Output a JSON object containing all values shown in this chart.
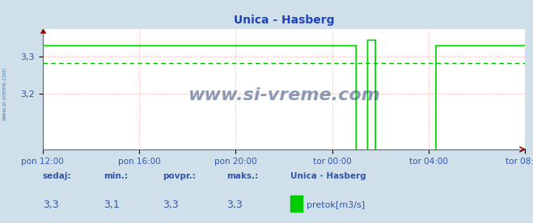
{
  "title": "Unica - Hasberg",
  "bg_color": "#cfe0eb",
  "plot_bg_color": "#ffffff",
  "line_color": "#00cc00",
  "avg_line_color": "#00bb00",
  "spine_color": "#4466aa",
  "grid_color": "#ffaaaa",
  "text_color": "#3355aa",
  "title_color": "#2244bb",
  "ymin": 3.05,
  "ymax": 3.375,
  "yticks": [
    3.2,
    3.3
  ],
  "xtick_labels": [
    "pon 12:00",
    "pon 16:00",
    "pon 20:00",
    "tor 00:00",
    "tor 04:00",
    "tor 08:00"
  ],
  "xtick_pos": [
    0,
    240,
    480,
    720,
    960,
    1200
  ],
  "total_minutes": 1200,
  "avg_value": 3.284,
  "high_value": 3.33,
  "spike_value": 3.345,
  "drop_start": 780,
  "spike_start": 808,
  "spike_end": 828,
  "drop2_end": 978,
  "sedaj": "3,3",
  "min_val": "3,1",
  "povpr": "3,3",
  "maks": "3,3",
  "legend_title": "Unica - Hasberg",
  "legend_label": "pretok[m3/s]",
  "watermark": "www.si-vreme.com",
  "watermark_color": "#1a3a6e",
  "sidebar_text": "www.si-vreme.com",
  "sidebar_color": "#336699"
}
